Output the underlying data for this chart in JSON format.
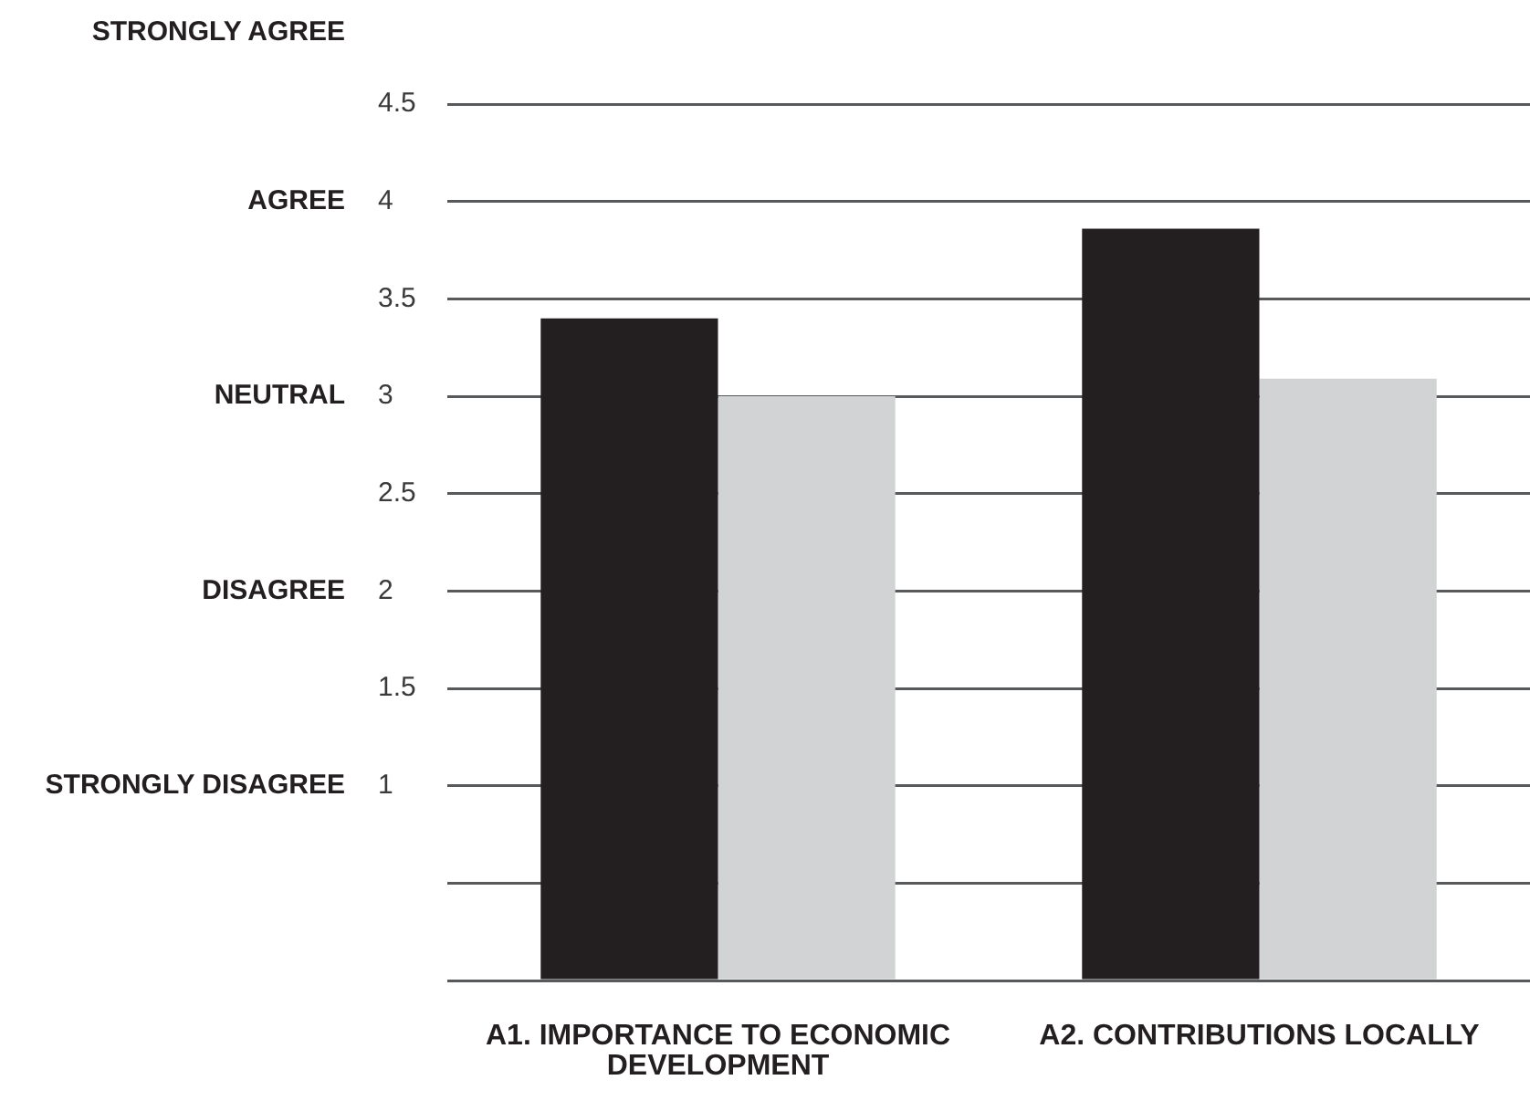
{
  "chart_data": {
    "type": "bar",
    "categories": [
      "A1. IMPORTANCE TO ECONOMIC DEVELOPMENT",
      "A2. CONTRIBUTIONS LOCALLY"
    ],
    "series": [
      {
        "color": "#231f20",
        "values": [
          3.4,
          3.86
        ]
      },
      {
        "color": "#d1d3d4",
        "values": [
          3.0,
          3.09
        ]
      }
    ],
    "ylim": [
      0,
      4.5
    ],
    "yticks": [
      {
        "value": 0,
        "label": null
      },
      {
        "value": 0.5,
        "label": null
      },
      1,
      1.5,
      2,
      2.5,
      3,
      3.5,
      4,
      4.5
    ],
    "annotations": [
      "STRONGLY AGREE",
      "AGREE",
      "NEUTRAL",
      "DISAGREE",
      "STRONGLY DISAGREE"
    ],
    "grid": "y",
    "legend": false
  }
}
